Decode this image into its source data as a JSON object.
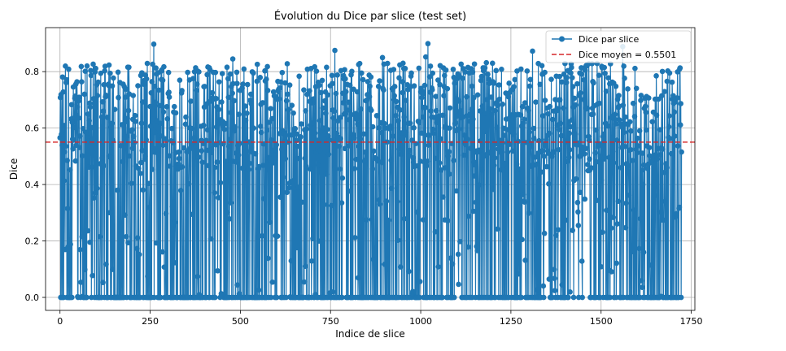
{
  "chart_data": {
    "type": "line",
    "title": "Évolution du Dice par slice (test set)",
    "xlabel": "Indice de slice",
    "ylabel": "Dice",
    "xlim": [
      -40,
      1760
    ],
    "ylim": [
      -0.046,
      0.956
    ],
    "xticks": [
      0,
      250,
      500,
      750,
      1000,
      1250,
      1500,
      1750
    ],
    "xtick_labels": [
      "0",
      "250",
      "500",
      "750",
      "1000",
      "1250",
      "1500",
      "1750"
    ],
    "yticks": [
      0.0,
      0.2,
      0.4,
      0.6,
      0.8
    ],
    "ytick_labels": [
      "0.0",
      "0.2",
      "0.4",
      "0.6",
      "0.8"
    ],
    "grid": true,
    "legend_position": "top-right",
    "n_points": 1724,
    "series": [
      {
        "name": "Dice par slice",
        "kind": "line-marker",
        "color": "#1f77b4",
        "summary": "1724 per-slice Dice values oscillating between 0.0 and about 0.93; many slices at exactly 0.0; values mostly between 0.4 and 0.85"
      },
      {
        "name": "Dice moyen = 0.5501",
        "kind": "hline",
        "y": 0.5501,
        "color": "#d62728",
        "dash": true
      }
    ]
  }
}
